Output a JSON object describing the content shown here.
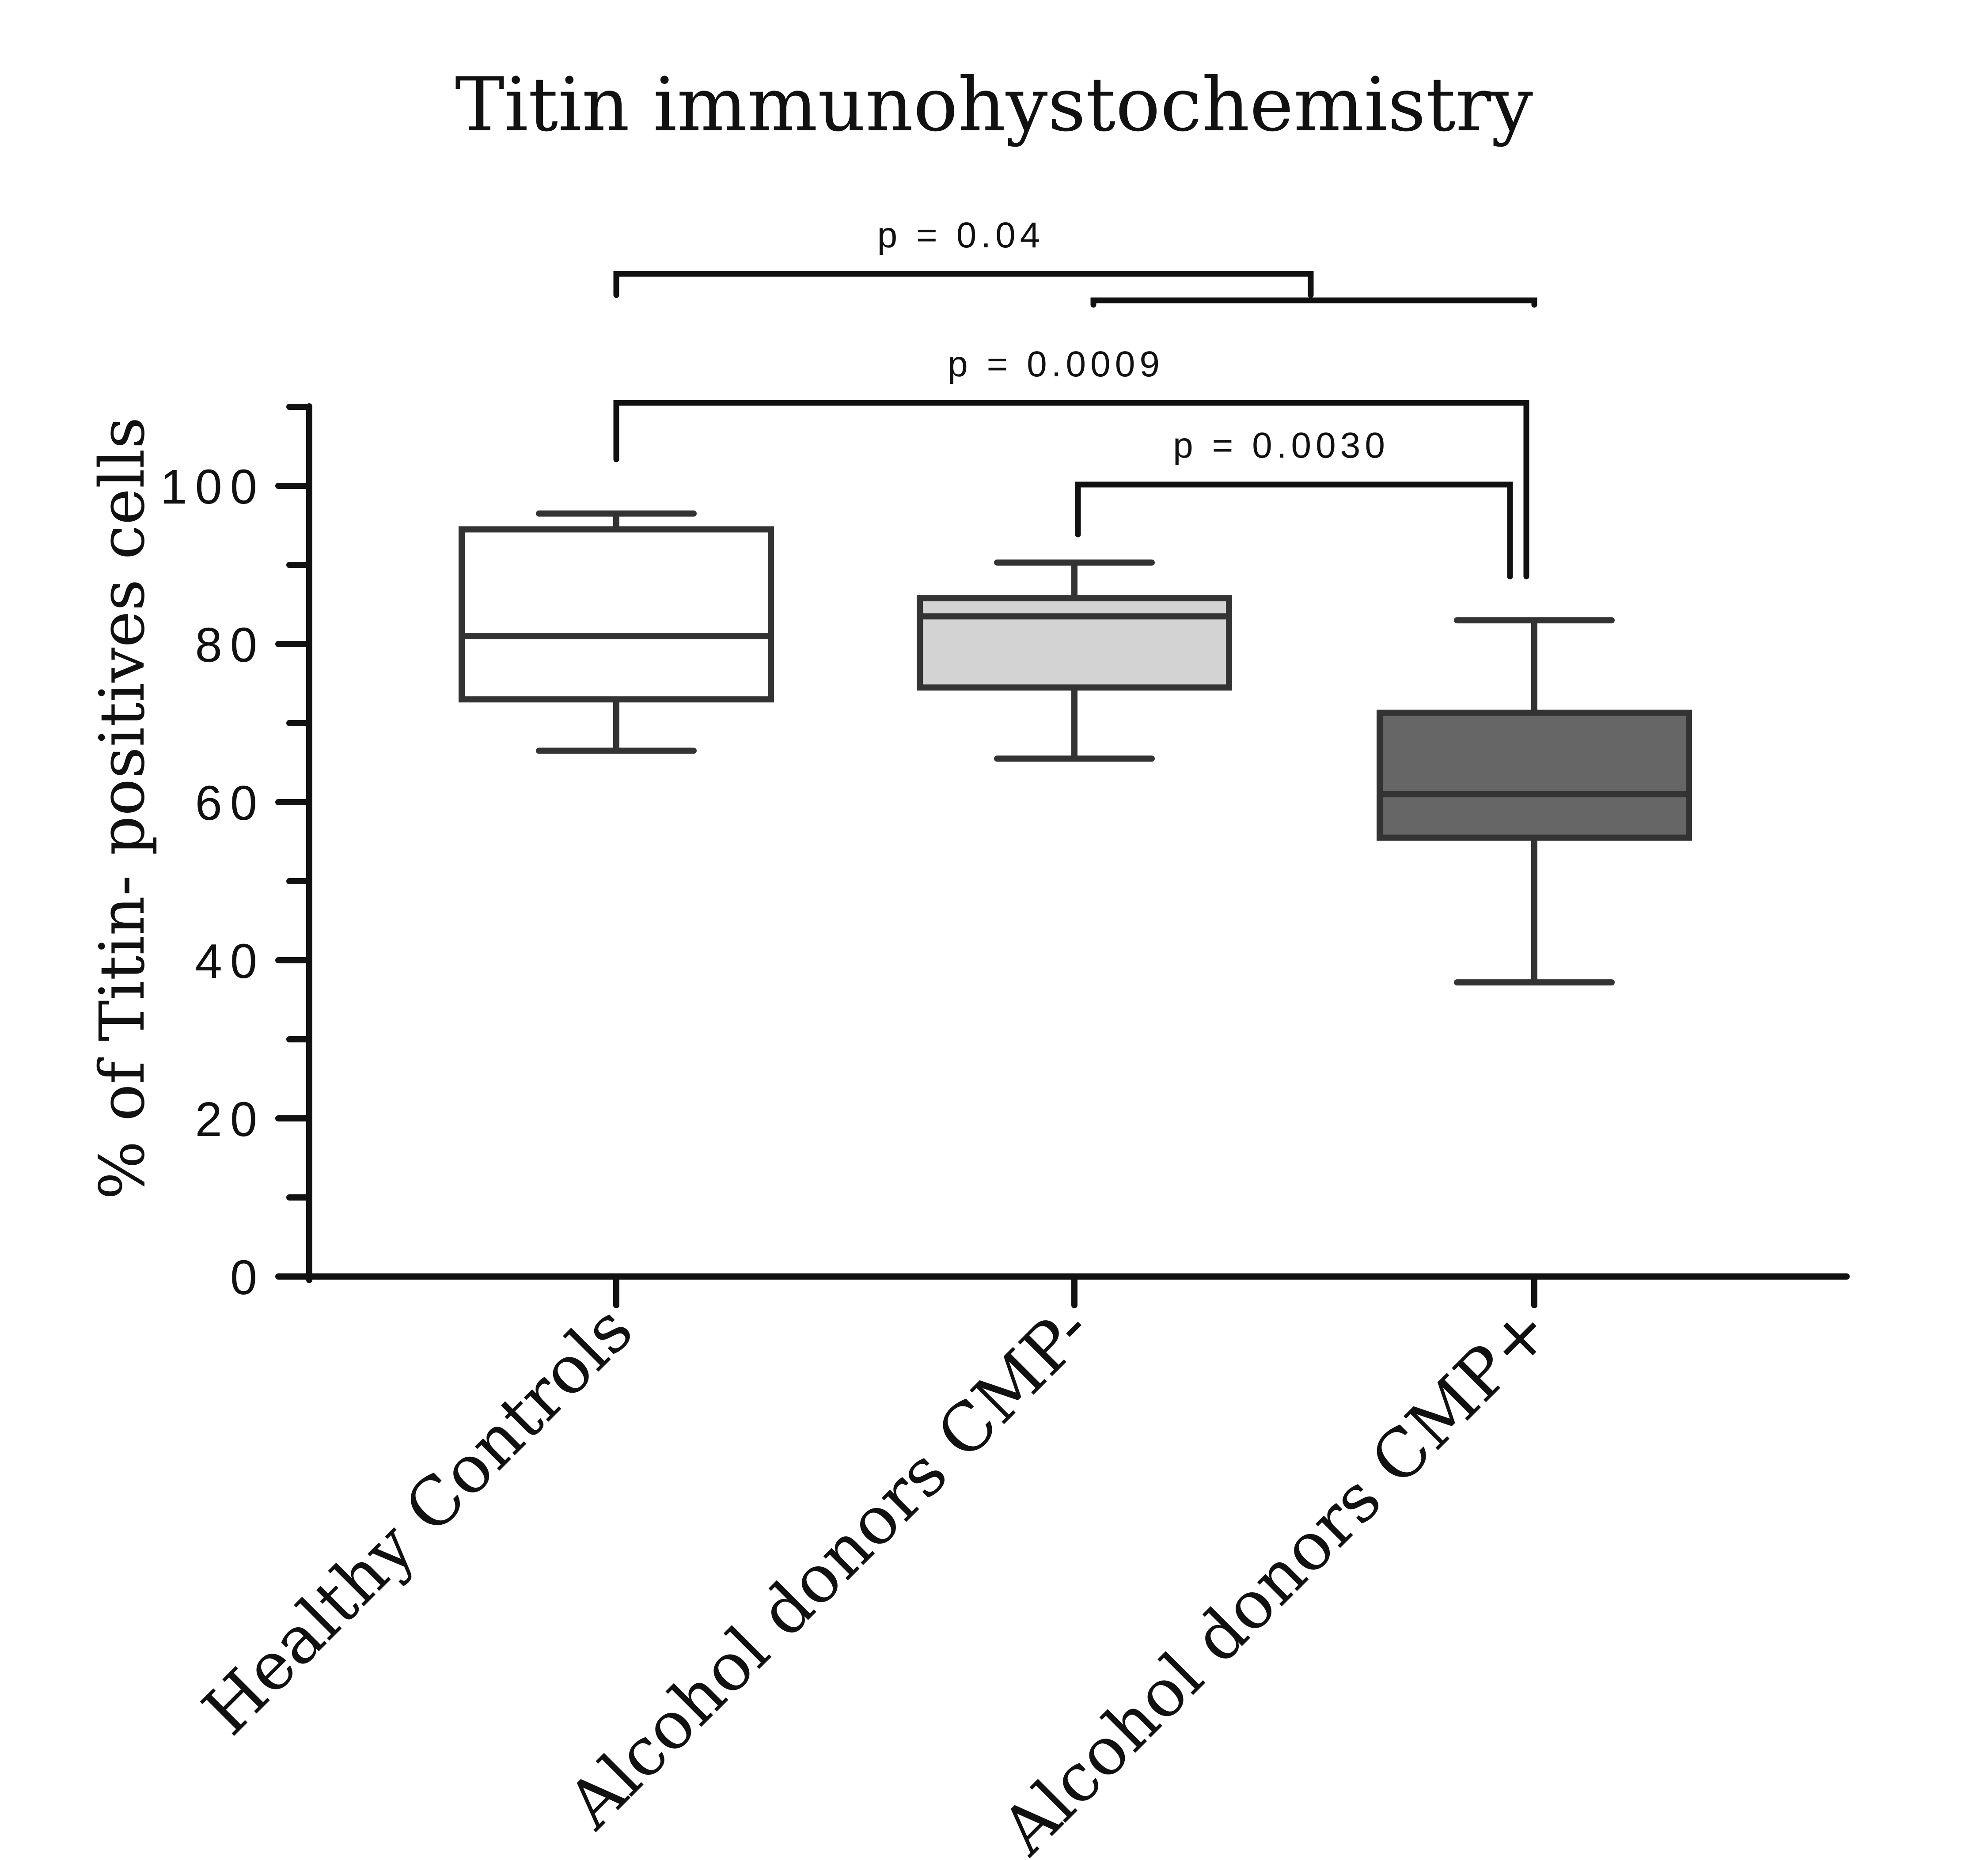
{
  "chart_data": {
    "type": "box",
    "title": "Titin immunohystochemistry",
    "xlabel": "",
    "ylabel": "% of Titin- positives cells",
    "ylim": [
      0,
      110
    ],
    "yticks": [
      0,
      20,
      40,
      60,
      80,
      100
    ],
    "yminor_ticks": [
      10,
      30,
      50,
      70,
      90,
      110
    ],
    "categories": [
      "Healthy Controls",
      "Alcohol donors CMP-",
      "Alcohol donors CMP+"
    ],
    "boxes": [
      {
        "category": "Healthy Controls",
        "min": 66.5,
        "q1": 73,
        "median": 81,
        "q3": 94.5,
        "max": 96.5,
        "fill": "#ffffff"
      },
      {
        "category": "Alcohol donors CMP-",
        "min": 65.5,
        "q1": 74.5,
        "median": 83.5,
        "q3": 85.8,
        "max": 90.3,
        "fill": "#d3d3d3"
      },
      {
        "category": "Alcohol donors CMP+",
        "min": 37.2,
        "q1": 55.5,
        "median": 61,
        "q3": 71.3,
        "max": 83,
        "fill": "#666666"
      }
    ],
    "significance": [
      {
        "label": "p = 0.04",
        "from": "Healthy Controls",
        "to": [
          "Alcohol donors CMP-",
          "Alcohol donors CMP+"
        ]
      },
      {
        "label": "p = 0.0009",
        "from": "Healthy Controls",
        "to": "Alcohol donors CMP+"
      },
      {
        "label": "p = 0.0030",
        "from": "Alcohol donors CMP-",
        "to": "Alcohol donors CMP+"
      }
    ],
    "grid": false,
    "legend": "none",
    "colors": {
      "axis": "#111111",
      "box_stroke": "#333333"
    }
  }
}
